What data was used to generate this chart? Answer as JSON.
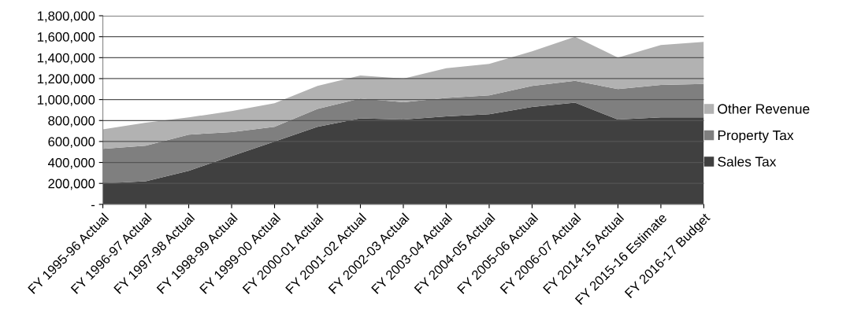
{
  "chart_data": {
    "type": "area",
    "stacked": true,
    "categories": [
      "FY 1995-96 Actual",
      "FY 1996-97 Actual",
      "FY 1997-98 Actual",
      "FY 1998-99 Actual",
      "FY 1999-00 Actual",
      "FY 2000-01 Actual",
      "FY 2001-02 Actual",
      "FY 2002-03 Actual",
      "FY 2003-04 Actual",
      "FY 2004-05 Actual",
      "FY 2005-06 Actual",
      "FY 2006-07 Actual",
      "FY 2014-15 Actual",
      "FY 2015-16 Estimate",
      "FY 2016-17 Budget"
    ],
    "series": [
      {
        "name": "Sales Tax",
        "color": "#404040",
        "values": [
          200000,
          220000,
          320000,
          460000,
          600000,
          740000,
          820000,
          810000,
          840000,
          860000,
          930000,
          970000,
          810000,
          830000,
          830000
        ]
      },
      {
        "name": "Property Tax",
        "color": "#7f7f7f",
        "values": [
          330000,
          340000,
          345000,
          230000,
          140000,
          170000,
          190000,
          165000,
          175000,
          180000,
          200000,
          210000,
          290000,
          310000,
          320000
        ]
      },
      {
        "name": "Other Revenue",
        "color": "#b2b2b2",
        "values": [
          185000,
          220000,
          165000,
          200000,
          225000,
          220000,
          220000,
          225000,
          285000,
          300000,
          330000,
          420000,
          300000,
          380000,
          400000
        ]
      }
    ],
    "ylim": [
      0,
      1800000
    ],
    "yticks": [
      {
        "value": 0,
        "label": "-"
      },
      {
        "value": 200000,
        "label": "200,000"
      },
      {
        "value": 400000,
        "label": "400,000"
      },
      {
        "value": 600000,
        "label": "600,000"
      },
      {
        "value": 800000,
        "label": "800,000"
      },
      {
        "value": 1000000,
        "label": "1,000,000"
      },
      {
        "value": 1200000,
        "label": "1,200,000"
      },
      {
        "value": 1400000,
        "label": "1,400,000"
      },
      {
        "value": 1600000,
        "label": "1,600,000"
      },
      {
        "value": 1800000,
        "label": "1,800,000"
      }
    ],
    "grid": "y",
    "legend": "right"
  }
}
